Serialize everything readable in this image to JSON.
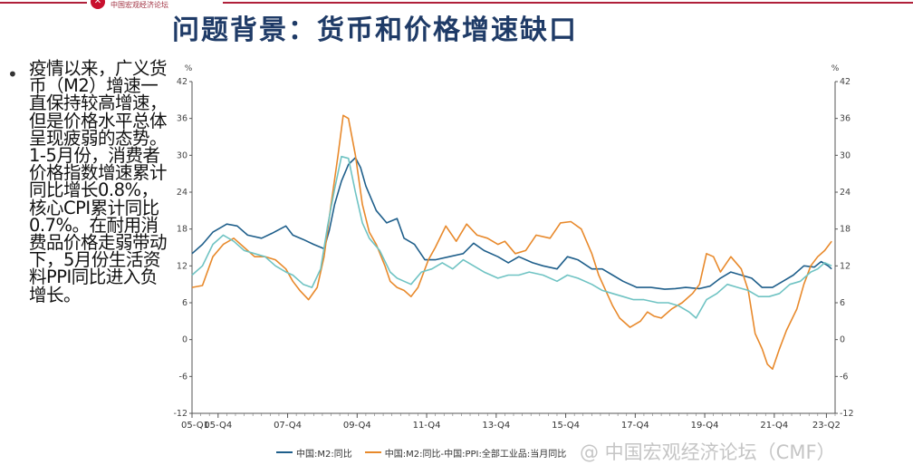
{
  "logo_text": "中国宏观经济论坛",
  "title": "问题背景：货币和价格增速缺口",
  "bullet_text": "疫情以来，广义货币（M2）增速一直保持较高增速，但是价格水平总体呈现疲弱的态势。1-5月份，消费者价格指数增速累计同比增长0.8%，核心CPI累计同比0.7%。在耐用消费品价格走弱带动下，5月份生活资料PPI同比进入负增长。",
  "watermark": "@ 中国宏观经济论坛（CMF）",
  "colors": {
    "m2": "#1f5f8b",
    "m2_minus_ppi": "#e8892b",
    "third": "#6fc3c3"
  },
  "chart_data": {
    "type": "line",
    "y_unit_left": "%",
    "y_unit_right": "%",
    "ylim": [
      -12,
      42
    ],
    "yticks": [
      -12,
      -6,
      0,
      6,
      12,
      18,
      24,
      30,
      36,
      42
    ],
    "xlim": [
      2005.0,
      2023.5
    ],
    "xtick_labels": [
      {
        "label": "05-Q1",
        "x": 2005.0
      },
      {
        "label": "05-Q4",
        "x": 2005.75
      },
      {
        "label": "07-Q4",
        "x": 2007.75
      },
      {
        "label": "09-Q4",
        "x": 2009.75
      },
      {
        "label": "11-Q4",
        "x": 2011.75
      },
      {
        "label": "13-Q4",
        "x": 2013.75
      },
      {
        "label": "15-Q4",
        "x": 2015.75
      },
      {
        "label": "17-Q4",
        "x": 2017.75
      },
      {
        "label": "19-Q4",
        "x": 2019.75
      },
      {
        "label": "21-Q4",
        "x": 2021.75
      },
      {
        "label": "23-Q2",
        "x": 2023.25
      }
    ],
    "legend_position": "bottom",
    "series": [
      {
        "name": "中国:M2:同比",
        "color": "#1f5f8b",
        "points": [
          [
            2005.0,
            14.0
          ],
          [
            2005.3,
            15.5
          ],
          [
            2005.6,
            17.5
          ],
          [
            2006.0,
            18.8
          ],
          [
            2006.3,
            18.5
          ],
          [
            2006.6,
            17.0
          ],
          [
            2007.0,
            16.5
          ],
          [
            2007.3,
            17.3
          ],
          [
            2007.7,
            18.5
          ],
          [
            2007.9,
            17.0
          ],
          [
            2008.2,
            16.3
          ],
          [
            2008.5,
            15.5
          ],
          [
            2008.8,
            14.8
          ],
          [
            2008.95,
            17.8
          ],
          [
            2009.1,
            22.0
          ],
          [
            2009.3,
            25.8
          ],
          [
            2009.5,
            28.5
          ],
          [
            2009.7,
            29.6
          ],
          [
            2009.85,
            28.0
          ],
          [
            2010.0,
            25.0
          ],
          [
            2010.3,
            21.0
          ],
          [
            2010.6,
            19.0
          ],
          [
            2010.9,
            19.7
          ],
          [
            2011.1,
            16.5
          ],
          [
            2011.4,
            15.5
          ],
          [
            2011.7,
            13.0
          ],
          [
            2012.0,
            13.0
          ],
          [
            2012.4,
            13.5
          ],
          [
            2012.8,
            14.0
          ],
          [
            2013.1,
            15.7
          ],
          [
            2013.4,
            14.5
          ],
          [
            2013.8,
            13.5
          ],
          [
            2014.1,
            12.5
          ],
          [
            2014.4,
            13.5
          ],
          [
            2014.8,
            12.5
          ],
          [
            2015.1,
            12.0
          ],
          [
            2015.5,
            11.5
          ],
          [
            2015.8,
            13.5
          ],
          [
            2016.1,
            13.0
          ],
          [
            2016.5,
            11.5
          ],
          [
            2016.8,
            11.5
          ],
          [
            2017.1,
            10.5
          ],
          [
            2017.4,
            9.5
          ],
          [
            2017.8,
            8.5
          ],
          [
            2018.2,
            8.5
          ],
          [
            2018.6,
            8.2
          ],
          [
            2018.9,
            8.3
          ],
          [
            2019.2,
            8.5
          ],
          [
            2019.6,
            8.3
          ],
          [
            2019.9,
            8.7
          ],
          [
            2020.2,
            10.0
          ],
          [
            2020.5,
            11.0
          ],
          [
            2020.8,
            10.5
          ],
          [
            2021.1,
            10.0
          ],
          [
            2021.4,
            8.5
          ],
          [
            2021.7,
            8.5
          ],
          [
            2022.0,
            9.5
          ],
          [
            2022.3,
            10.5
          ],
          [
            2022.6,
            12.0
          ],
          [
            2022.9,
            11.8
          ],
          [
            2023.1,
            12.7
          ],
          [
            2023.3,
            12.0
          ],
          [
            2023.4,
            11.5
          ]
        ]
      },
      {
        "name": "中国:M2:同比-中国:PPI:全部工业品:当月同比",
        "color": "#e8892b",
        "points": [
          [
            2005.0,
            8.5
          ],
          [
            2005.3,
            8.8
          ],
          [
            2005.6,
            13.5
          ],
          [
            2005.9,
            15.5
          ],
          [
            2006.2,
            16.5
          ],
          [
            2006.5,
            15.0
          ],
          [
            2006.8,
            13.5
          ],
          [
            2007.1,
            13.5
          ],
          [
            2007.4,
            13.0
          ],
          [
            2007.7,
            11.5
          ],
          [
            2007.9,
            9.5
          ],
          [
            2008.1,
            8.0
          ],
          [
            2008.35,
            6.5
          ],
          [
            2008.6,
            8.5
          ],
          [
            2008.8,
            13.5
          ],
          [
            2009.0,
            22.0
          ],
          [
            2009.2,
            30.0
          ],
          [
            2009.35,
            36.5
          ],
          [
            2009.5,
            36.0
          ],
          [
            2009.7,
            30.0
          ],
          [
            2009.9,
            22.0
          ],
          [
            2010.1,
            17.5
          ],
          [
            2010.3,
            15.5
          ],
          [
            2010.55,
            12.0
          ],
          [
            2010.7,
            9.5
          ],
          [
            2010.9,
            8.5
          ],
          [
            2011.1,
            8.0
          ],
          [
            2011.3,
            7.0
          ],
          [
            2011.5,
            8.5
          ],
          [
            2011.8,
            13.0
          ],
          [
            2012.0,
            15.0
          ],
          [
            2012.3,
            18.5
          ],
          [
            2012.6,
            16.0
          ],
          [
            2012.9,
            18.8
          ],
          [
            2013.2,
            17.0
          ],
          [
            2013.5,
            16.5
          ],
          [
            2013.8,
            15.5
          ],
          [
            2014.0,
            16.0
          ],
          [
            2014.3,
            14.0
          ],
          [
            2014.6,
            14.5
          ],
          [
            2014.9,
            17.0
          ],
          [
            2015.3,
            16.5
          ],
          [
            2015.6,
            19.0
          ],
          [
            2015.9,
            19.2
          ],
          [
            2016.2,
            18.0
          ],
          [
            2016.5,
            14.0
          ],
          [
            2016.7,
            10.5
          ],
          [
            2016.9,
            8.0
          ],
          [
            2017.1,
            5.5
          ],
          [
            2017.3,
            3.5
          ],
          [
            2017.6,
            2.0
          ],
          [
            2017.9,
            3.0
          ],
          [
            2018.1,
            4.5
          ],
          [
            2018.3,
            3.8
          ],
          [
            2018.5,
            3.5
          ],
          [
            2018.8,
            5.0
          ],
          [
            2019.1,
            6.0
          ],
          [
            2019.4,
            7.5
          ],
          [
            2019.6,
            9.0
          ],
          [
            2019.8,
            14.0
          ],
          [
            2020.0,
            13.5
          ],
          [
            2020.2,
            11.0
          ],
          [
            2020.5,
            13.5
          ],
          [
            2020.8,
            11.5
          ],
          [
            2021.0,
            8.0
          ],
          [
            2021.2,
            1.0
          ],
          [
            2021.4,
            -1.5
          ],
          [
            2021.55,
            -4.0
          ],
          [
            2021.7,
            -4.8
          ],
          [
            2021.9,
            -1.5
          ],
          [
            2022.1,
            1.5
          ],
          [
            2022.4,
            5.0
          ],
          [
            2022.6,
            9.0
          ],
          [
            2022.8,
            12.0
          ],
          [
            2023.0,
            13.5
          ],
          [
            2023.2,
            14.5
          ],
          [
            2023.4,
            16.0
          ]
        ]
      },
      {
        "name": "",
        "color": "#6fc3c3",
        "points": [
          [
            2005.0,
            10.5
          ],
          [
            2005.3,
            12.0
          ],
          [
            2005.6,
            15.5
          ],
          [
            2005.9,
            17.0
          ],
          [
            2006.2,
            16.0
          ],
          [
            2006.5,
            14.5
          ],
          [
            2006.8,
            14.0
          ],
          [
            2007.1,
            13.5
          ],
          [
            2007.4,
            12.0
          ],
          [
            2007.7,
            11.0
          ],
          [
            2007.9,
            10.5
          ],
          [
            2008.2,
            9.0
          ],
          [
            2008.45,
            8.5
          ],
          [
            2008.7,
            11.5
          ],
          [
            2008.9,
            18.5
          ],
          [
            2009.1,
            24.5
          ],
          [
            2009.3,
            29.8
          ],
          [
            2009.5,
            29.5
          ],
          [
            2009.7,
            24.0
          ],
          [
            2009.9,
            19.0
          ],
          [
            2010.1,
            16.5
          ],
          [
            2010.4,
            14.5
          ],
          [
            2010.7,
            11.0
          ],
          [
            2010.9,
            10.0
          ],
          [
            2011.1,
            9.5
          ],
          [
            2011.3,
            9.0
          ],
          [
            2011.6,
            11.0
          ],
          [
            2011.9,
            11.5
          ],
          [
            2012.2,
            12.5
          ],
          [
            2012.5,
            11.5
          ],
          [
            2012.8,
            13.0
          ],
          [
            2013.1,
            12.0
          ],
          [
            2013.4,
            11.0
          ],
          [
            2013.8,
            10.0
          ],
          [
            2014.1,
            10.5
          ],
          [
            2014.4,
            10.5
          ],
          [
            2014.7,
            11.0
          ],
          [
            2015.1,
            10.5
          ],
          [
            2015.5,
            9.5
          ],
          [
            2015.8,
            10.5
          ],
          [
            2016.1,
            10.0
          ],
          [
            2016.5,
            9.0
          ],
          [
            2016.8,
            8.0
          ],
          [
            2017.1,
            7.5
          ],
          [
            2017.4,
            7.0
          ],
          [
            2017.7,
            6.5
          ],
          [
            2018.0,
            6.5
          ],
          [
            2018.4,
            6.0
          ],
          [
            2018.7,
            6.0
          ],
          [
            2019.0,
            5.5
          ],
          [
            2019.3,
            4.5
          ],
          [
            2019.5,
            3.5
          ],
          [
            2019.8,
            6.5
          ],
          [
            2020.1,
            7.5
          ],
          [
            2020.4,
            9.0
          ],
          [
            2020.7,
            8.5
          ],
          [
            2021.0,
            8.0
          ],
          [
            2021.3,
            7.0
          ],
          [
            2021.6,
            7.0
          ],
          [
            2021.9,
            7.5
          ],
          [
            2022.2,
            9.0
          ],
          [
            2022.5,
            9.5
          ],
          [
            2022.8,
            11.0
          ],
          [
            2023.0,
            11.5
          ],
          [
            2023.2,
            12.5
          ],
          [
            2023.4,
            12.0
          ]
        ]
      }
    ],
    "legend": [
      {
        "label": "中国:M2:同比",
        "color": "#1f5f8b"
      },
      {
        "label": "中国:M2:同比-中国:PPI:全部工业品:当月同比",
        "color": "#e8892b"
      }
    ]
  }
}
